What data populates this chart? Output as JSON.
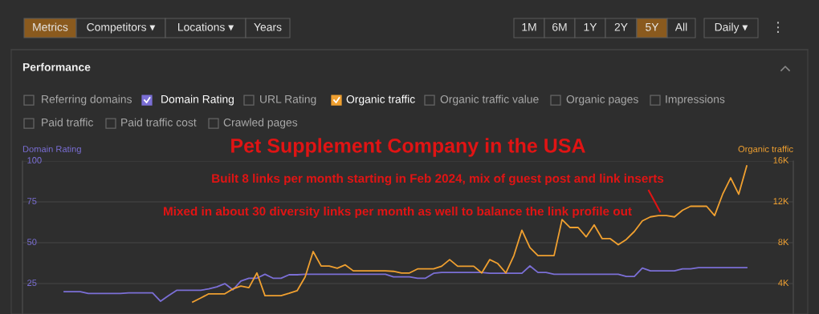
{
  "chart_data": {
    "type": "line",
    "title": "Pet Supplement Company in the USA",
    "ylabel": "Domain Rating",
    "y2label": "Organic traffic",
    "categories": [
      null,
      null,
      null,
      null,
      null,
      null,
      null,
      null,
      null,
      null,
      null,
      null,
      null,
      null,
      null,
      null,
      null,
      null,
      null,
      null,
      null,
      null,
      null,
      null,
      null,
      null,
      null,
      null,
      null,
      null,
      null,
      null,
      null,
      null,
      null,
      null,
      null,
      null,
      null,
      null,
      null,
      null,
      null,
      null,
      null,
      null,
      null,
      null,
      null,
      null,
      null,
      null,
      null,
      null,
      null,
      null,
      null,
      null,
      null,
      null,
      null,
      null,
      null,
      null,
      null,
      null,
      null,
      null,
      null,
      null,
      null,
      null,
      null,
      null,
      null,
      null,
      null,
      null,
      null,
      null,
      null,
      null,
      null,
      null,
      null,
      null
    ],
    "series": [
      {
        "color": "#7b6fd6",
        "values": [
          20.1,
          20.1,
          20.1,
          19.0,
          19.0,
          19.0,
          19.0,
          19.0,
          19.3,
          19.3,
          19.3,
          19.3,
          14.2,
          17.7,
          20.9,
          20.9,
          20.9,
          20.9,
          21.8,
          23.0,
          25.0,
          21.2,
          26.6,
          28.3,
          28.3,
          30.7,
          28.3,
          28.3,
          30.4,
          30.4,
          30.7,
          30.7,
          30.7,
          30.7,
          30.7,
          30.7,
          30.7,
          30.7,
          30.7,
          30.7,
          30.7,
          29.1,
          29.1,
          29.1,
          28.3,
          28.3,
          31.3,
          31.8,
          31.8,
          31.8,
          31.8,
          31.8,
          31.8,
          31.3,
          31.3,
          31.3,
          31.3,
          31.3,
          35.8,
          31.8,
          31.8,
          30.7,
          30.7,
          30.7,
          30.7,
          30.7,
          30.7,
          30.7,
          30.7,
          30.7,
          29.4,
          29.4,
          34.5,
          32.8,
          32.8,
          32.8,
          32.8,
          34.0,
          34.0,
          34.8,
          34.8,
          34.8,
          34.8,
          34.8,
          34.8,
          34.8
        ]
      },
      {
        "color": "#f0a030",
        "axis": "y2",
        "values": [
          null,
          null,
          null,
          null,
          null,
          null,
          null,
          null,
          null,
          null,
          null,
          null,
          null,
          null,
          null,
          null,
          2200,
          2590,
          3000,
          3000,
          3000,
          3480,
          3760,
          3600,
          5040,
          2820,
          2820,
          2820,
          3050,
          3300,
          4650,
          7140,
          5720,
          5720,
          5500,
          5830,
          5250,
          5250,
          5250,
          5250,
          5250,
          5200,
          5040,
          5040,
          5440,
          5440,
          5440,
          5700,
          6350,
          5700,
          5700,
          5700,
          5040,
          6350,
          5960,
          5040,
          6740,
          9230,
          7530,
          6740,
          6740,
          6740,
          10270,
          9490,
          9490,
          8580,
          9750,
          8400,
          8400,
          7800,
          8320,
          9100,
          10140,
          10530,
          10660,
          10660,
          10530,
          11180,
          11570,
          11570,
          11570,
          10660,
          12750,
          14350,
          12750,
          15520
        ]
      }
    ],
    "ylim": [
      6.4,
      100
    ],
    "yticks": [
      25,
      50,
      75,
      100
    ],
    "y2lim": [
      1024,
      16000
    ],
    "y2ticks": [
      {
        "value": 4000,
        "label": "4K"
      },
      {
        "value": 8000,
        "label": "8K"
      },
      {
        "value": 12000,
        "label": "12K"
      },
      {
        "value": 16000,
        "label": "16K"
      }
    ],
    "grid": "y",
    "marker": "none",
    "line_style": "solid",
    "annotations": [
      "Built 8 links per month starting in Feb 2024, mix of guest post and link inserts",
      "Mixed in about 30 diversity links per month as well to balance the link profile out",
      "Metrics",
      "Competitors ▾",
      "Locations ▾",
      "Years",
      "1M",
      "6M",
      "1Y",
      "2Y",
      "5Y",
      "All",
      "Daily ▾",
      "⋮",
      "Performance",
      "Referring domains",
      "Domain Rating",
      "URL Rating",
      "Organic traffic",
      "Organic traffic value",
      "Organic pages",
      "Impressions",
      "Paid traffic",
      "Paid traffic cost",
      "Crawled pages"
    ]
  }
}
